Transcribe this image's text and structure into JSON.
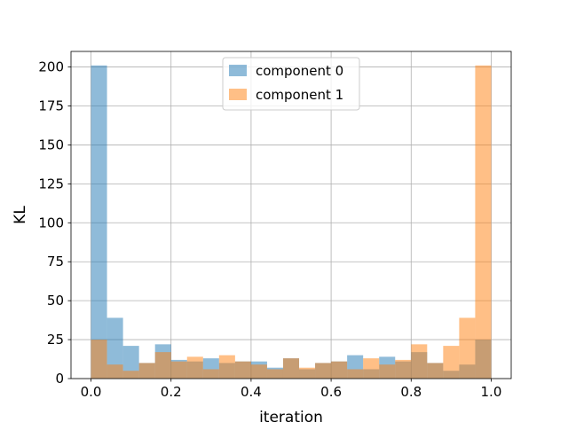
{
  "chart_data": {
    "type": "bar",
    "xlabel": "iteration",
    "ylabel": "KL",
    "xlim": [
      -0.05,
      1.05
    ],
    "ylim": [
      0,
      210
    ],
    "xticks": [
      0.0,
      0.2,
      0.4,
      0.6,
      0.8,
      1.0
    ],
    "xtick_labels": [
      "0.0",
      "0.2",
      "0.4",
      "0.6",
      "0.8",
      "1.0"
    ],
    "yticks": [
      0,
      25,
      50,
      75,
      100,
      125,
      150,
      175,
      200
    ],
    "ytick_labels": [
      "0",
      "25",
      "50",
      "75",
      "100",
      "125",
      "150",
      "175",
      "200"
    ],
    "grid": true,
    "legend_position": "top-center",
    "bin_edges": [
      0.0,
      0.04,
      0.08,
      0.12,
      0.16,
      0.2,
      0.24,
      0.28,
      0.32,
      0.36,
      0.4,
      0.44,
      0.48,
      0.52,
      0.56,
      0.6,
      0.64,
      0.68,
      0.72,
      0.76,
      0.8,
      0.84,
      0.88,
      0.92,
      0.96,
      1.0
    ],
    "series": [
      {
        "name": "component 0",
        "color": "#1f77b4",
        "opacity": 0.5,
        "values": [
          201,
          39,
          21,
          10,
          22,
          12,
          11,
          13,
          10,
          11,
          11,
          7,
          13,
          6,
          10,
          11,
          15,
          6,
          14,
          11,
          17,
          10,
          5,
          9,
          25
        ]
      },
      {
        "name": "component 1",
        "color": "#ff7f0e",
        "opacity": 0.5,
        "values": [
          25,
          9,
          5,
          10,
          17,
          11,
          14,
          6,
          15,
          11,
          9,
          6,
          13,
          7,
          10,
          11,
          6,
          13,
          9,
          12,
          22,
          10,
          21,
          39,
          201
        ]
      }
    ]
  }
}
